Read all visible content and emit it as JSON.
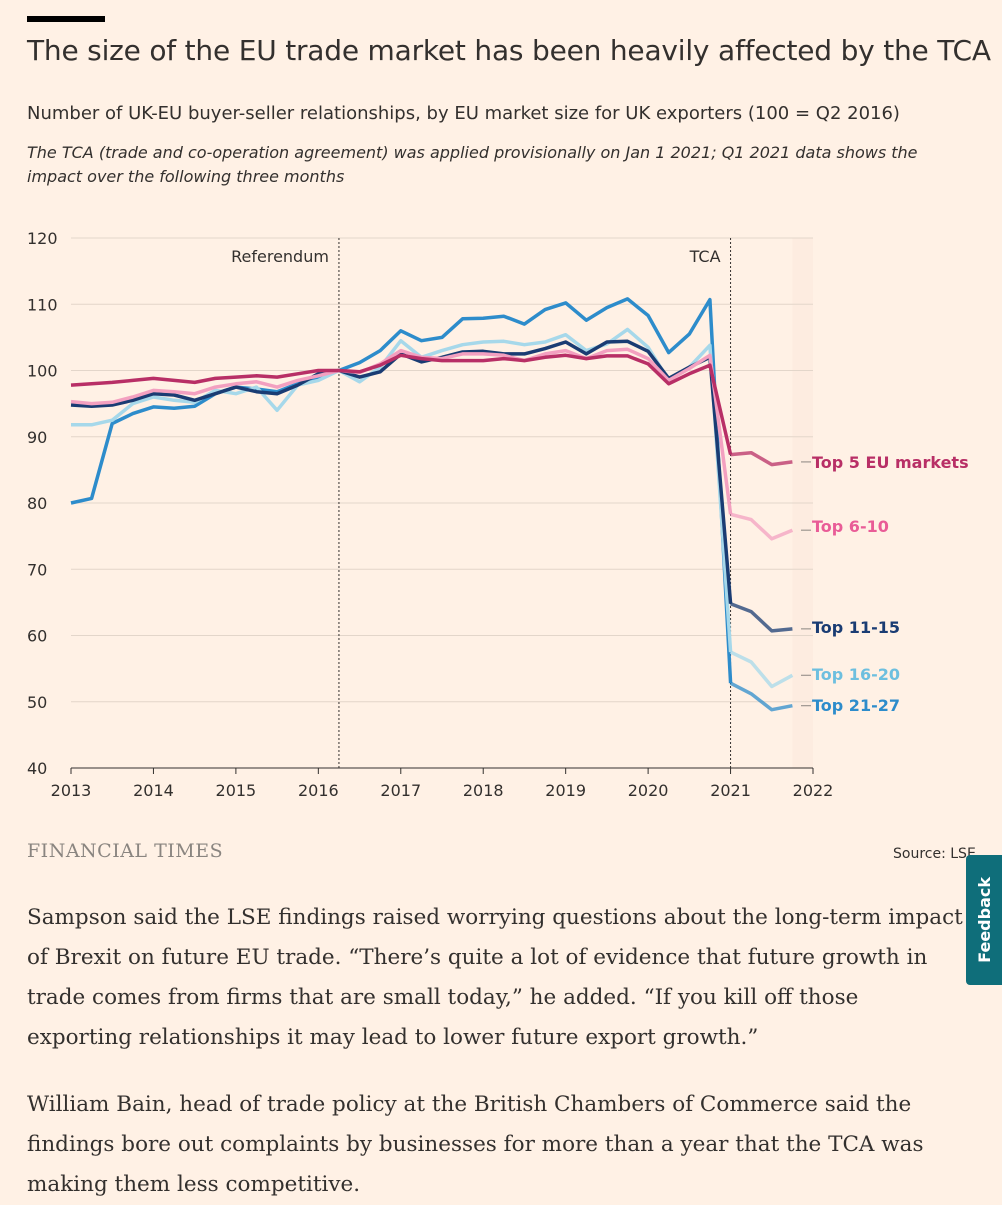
{
  "header": {
    "title": "The size of the EU trade market has been heavily affected by the TCA",
    "subtitle": "Number of UK-EU buyer-seller relationships, by EU market size for UK exporters (100 = Q2 2016)",
    "note": "The TCA (trade and co-operation agreement) was applied provisionally on Jan 1 2021; Q1 2021 data shows the impact over the following three months"
  },
  "footer": {
    "publisher": "FINANCIAL TIMES",
    "source": "Source: LSE"
  },
  "feedback": {
    "label": "Feedback"
  },
  "article": {
    "paragraphs": [
      "Sampson said the LSE findings raised worrying questions about the long-term impact of Brexit on future EU trade. “There’s quite a lot of evidence that future growth in trade comes from firms that are small today,” he added. “If you kill off those exporting relationships it may lead to lower future export growth.”",
      "William Bain, head of trade policy at the British Chambers of Commerce said the findings bore out complaints by businesses for more than a year that the TCA was making them less competitive."
    ]
  },
  "chart_data": {
    "type": "line",
    "title": "The size of the EU trade market has been heavily affected by the TCA",
    "xlabel": "",
    "ylabel": "",
    "xlim": [
      2013,
      2022
    ],
    "ylim": [
      40,
      120
    ],
    "x_ticks": [
      2013,
      2014,
      2015,
      2016,
      2017,
      2018,
      2019,
      2020,
      2021,
      2022
    ],
    "y_ticks": [
      40,
      50,
      60,
      70,
      80,
      90,
      100,
      110,
      120
    ],
    "grid": true,
    "x": [
      2013.0,
      2013.25,
      2013.5,
      2013.75,
      2014.0,
      2014.25,
      2014.5,
      2014.75,
      2015.0,
      2015.25,
      2015.5,
      2015.75,
      2016.0,
      2016.25,
      2016.5,
      2016.75,
      2017.0,
      2017.25,
      2017.5,
      2017.75,
      2018.0,
      2018.25,
      2018.5,
      2018.75,
      2019.0,
      2019.25,
      2019.5,
      2019.75,
      2020.0,
      2020.25,
      2020.5,
      2020.75,
      2021.0,
      2021.25,
      2021.5,
      2021.75
    ],
    "annotations": [
      {
        "x": 2016.25,
        "label": "Referendum"
      },
      {
        "x": 2021.0,
        "label": "TCA"
      }
    ],
    "series": [
      {
        "name": "Top 21-27",
        "color": "#2d8ccb",
        "values": [
          80,
          80.7,
          92,
          93.5,
          94.5,
          94.3,
          94.6,
          96.5,
          97.5,
          97.2,
          96.8,
          98,
          99,
          100,
          101.2,
          103,
          106,
          104.5,
          105,
          107.8,
          107.9,
          108.2,
          107,
          109.2,
          110.2,
          107.6,
          109.5,
          110.8,
          108.3,
          102.7,
          105.5,
          110.7,
          52.8,
          51.2,
          48.8,
          49.4
        ]
      },
      {
        "name": "Top 16-20",
        "color": "#a6d8ea",
        "values": [
          91.8,
          91.8,
          92.5,
          95,
          96,
          95.5,
          95.2,
          97,
          96.5,
          97.5,
          94,
          97.8,
          98.5,
          100,
          98.3,
          100.5,
          104.5,
          102,
          103,
          103.9,
          104.3,
          104.4,
          103.9,
          104.3,
          105.4,
          103,
          104,
          106.2,
          103.5,
          98.5,
          100.5,
          103.8,
          57.5,
          56,
          52.3,
          54
        ]
      },
      {
        "name": "Top 11-15",
        "color": "#1a3c73",
        "values": [
          94.8,
          94.6,
          94.8,
          95.5,
          96.5,
          96.3,
          95.5,
          96.5,
          97.5,
          96.8,
          96.5,
          97.8,
          99.5,
          100,
          99,
          99.8,
          102.5,
          101.3,
          102,
          102.8,
          102.9,
          102.5,
          102.5,
          103.3,
          104.3,
          102.5,
          104.3,
          104.4,
          102.9,
          98.8,
          100.5,
          102,
          64.8,
          63.6,
          60.7,
          61
        ]
      },
      {
        "name": "Top 6-10",
        "color": "#f3a0c0",
        "values": [
          95.3,
          95,
          95.2,
          96,
          97,
          96.8,
          96.5,
          97.5,
          98,
          98.3,
          97.5,
          98.5,
          99.2,
          100,
          99.7,
          101,
          103,
          102,
          101.8,
          102.5,
          102.5,
          102.3,
          101.5,
          102.5,
          103,
          101.8,
          103,
          103.2,
          101.8,
          98.5,
          100.3,
          102.3,
          78.3,
          77.5,
          74.6,
          75.9
        ]
      },
      {
        "name": "Top 5 EU markets",
        "color": "#b82f66",
        "values": [
          97.8,
          98,
          98.2,
          98.5,
          98.8,
          98.5,
          98.2,
          98.8,
          99,
          99.2,
          99,
          99.5,
          100,
          100,
          99.8,
          100.8,
          102.3,
          101.8,
          101.5,
          101.5,
          101.5,
          101.8,
          101.5,
          102,
          102.3,
          101.8,
          102.2,
          102.2,
          101,
          98,
          99.5,
          100.8,
          87.3,
          87.6,
          85.8,
          86.2
        ]
      }
    ],
    "end_labels": [
      {
        "series": "Top 5 EU markets",
        "text": "Top 5 EU markets",
        "y": 86.2,
        "color": "#b82f66"
      },
      {
        "series": "Top 6-10",
        "text": "Top 6-10",
        "y": 76.5,
        "color": "#e95c97"
      },
      {
        "series": "Top 11-15",
        "text": "Top 11-15",
        "y": 61.3,
        "color": "#1a3c73"
      },
      {
        "series": "Top 16-20",
        "text": "Top 16-20",
        "y": 54.2,
        "color": "#6dbfdf"
      },
      {
        "series": "Top 21-27",
        "text": "Top 21-27",
        "y": 49.5,
        "color": "#2d8ccb"
      }
    ]
  }
}
